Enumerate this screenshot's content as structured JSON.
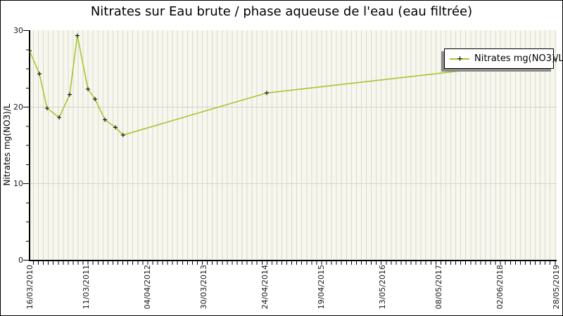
{
  "title": "Nitrates sur Eau brute / phase aqueuse de l'eau (eau filtrée)",
  "y_axis": {
    "label": "Nitrates mg(NO3)/L",
    "min": 0,
    "max": 30,
    "major_ticks": [
      0,
      10,
      20,
      30
    ],
    "minor_step": 2.5,
    "gridline_values": [
      10,
      20
    ]
  },
  "x_axis": {
    "tick_labels": [
      "16/03/2010",
      "11/03/2011",
      "04/04/2012",
      "30/03/2013",
      "24/04/2014",
      "19/04/2015",
      "13/05/2016",
      "08/05/2017",
      "02/06/2018",
      "28/05/2019"
    ],
    "minor_grid": "monthly vertical stripes"
  },
  "legend": {
    "label": "Nitrates mg(NO3)/L",
    "position": "top-right"
  },
  "colors": {
    "line": "#a4c62c",
    "marker": "#1a1a1a",
    "plot_bg": "#f7f7ee",
    "stripe": "#dadad2",
    "grid": "#d4d4cc",
    "legend_shadow": "#8c8c8c"
  },
  "chart_data": {
    "type": "line",
    "title": "Nitrates sur Eau brute / phase aqueuse de l'eau (eau filtrée)",
    "ylabel": "Nitrates mg(NO3)/L",
    "ylim": [
      0,
      30
    ],
    "x_tick_labels": [
      "16/03/2010",
      "11/03/2011",
      "04/04/2012",
      "30/03/2013",
      "24/04/2014",
      "19/04/2015",
      "13/05/2016",
      "08/05/2017",
      "02/06/2018",
      "28/05/2019"
    ],
    "grid": "horizontal gridlines at 10 and 20; monthly vertical minor stripes",
    "legend_position": "top-right",
    "series": [
      {
        "name": "Nitrates mg(NO3)/L",
        "marker": "plus",
        "points": [
          {
            "date": "16/03/2010",
            "value": 27.3
          },
          {
            "date": "18/05/2010",
            "value": 24.3
          },
          {
            "date": "06/07/2010",
            "value": 19.8
          },
          {
            "date": "21/09/2010",
            "value": 18.6
          },
          {
            "date": "27/11/2010",
            "value": 21.6
          },
          {
            "date": "15/01/2011",
            "value": 29.3
          },
          {
            "date": "24/03/2011",
            "value": 22.3
          },
          {
            "date": "08/05/2011",
            "value": 21.0
          },
          {
            "date": "10/07/2011",
            "value": 18.3
          },
          {
            "date": "15/09/2011",
            "value": 17.3
          },
          {
            "date": "03/11/2011",
            "value": 16.3
          },
          {
            "date": "08/05/2014",
            "value": 21.8
          },
          {
            "date": "28/05/2019",
            "value": 26.1
          }
        ]
      }
    ]
  }
}
